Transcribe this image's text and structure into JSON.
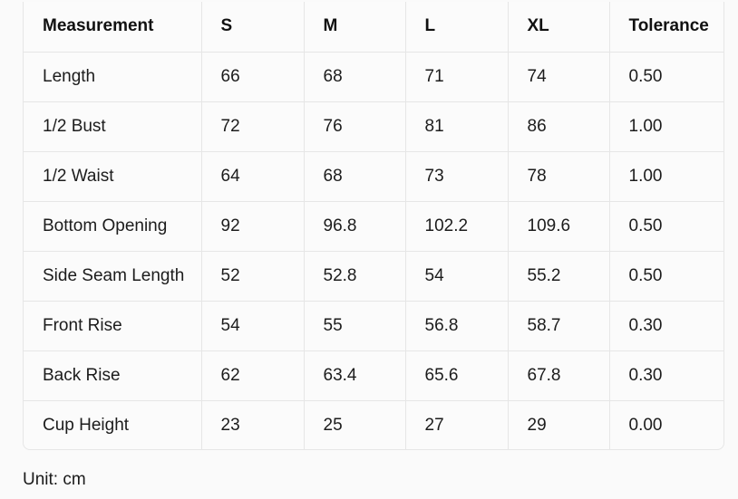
{
  "table": {
    "headers": [
      "Measurement",
      "S",
      "M",
      "L",
      "XL",
      "Tolerance"
    ],
    "rows": [
      [
        "Length",
        "66",
        "68",
        "71",
        "74",
        "0.50"
      ],
      [
        "1/2 Bust",
        "72",
        "76",
        "81",
        "86",
        "1.00"
      ],
      [
        "1/2 Waist",
        "64",
        "68",
        "73",
        "78",
        "1.00"
      ],
      [
        "Bottom Opening",
        "92",
        "96.8",
        "102.2",
        "109.6",
        "0.50"
      ],
      [
        "Side Seam Length",
        "52",
        "52.8",
        "54",
        "55.2",
        "0.50"
      ],
      [
        "Front Rise",
        "54",
        "55",
        "56.8",
        "58.7",
        "0.30"
      ],
      [
        "Back Rise",
        "62",
        "63.4",
        "65.6",
        "67.8",
        "0.30"
      ],
      [
        "Cup Height",
        "23",
        "25",
        "27",
        "29",
        "0.00"
      ]
    ]
  },
  "footer": {
    "unit_label": "Unit: cm"
  }
}
